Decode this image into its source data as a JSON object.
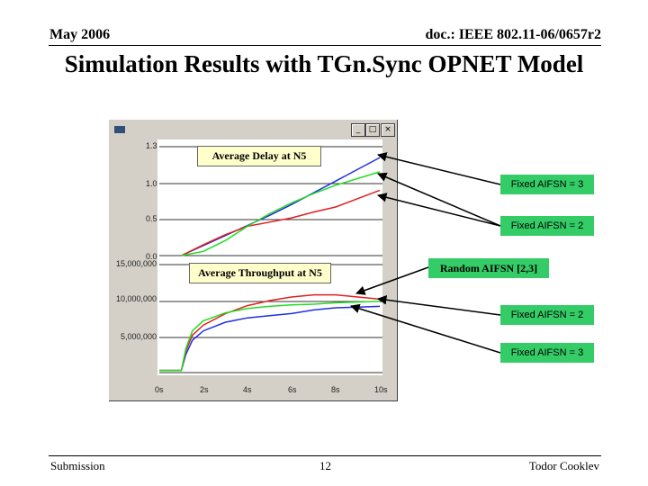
{
  "header": {
    "date": "May 2006",
    "doc": "doc.: IEEE 802.11-06/0657r2"
  },
  "title": "Simulation Results with TGn.Sync OPNET Model",
  "window": {
    "minimize": "_",
    "maximize": "□",
    "close": "×"
  },
  "chart_data": [
    {
      "type": "line",
      "title": "Average Delay at N5",
      "x_ticks": [
        "0s",
        "2s",
        "4s",
        "6s",
        "8s",
        "10s"
      ],
      "y_ticks": [
        "1.3",
        "1.0",
        "0.5",
        "0.0"
      ],
      "series": [
        {
          "name": "Fixed AIFSN = 3",
          "color": "#1f2fe0",
          "x": [
            1,
            2,
            3,
            4,
            5,
            6,
            7,
            8,
            9,
            10
          ],
          "values": [
            0.0,
            0.12,
            0.24,
            0.36,
            0.48,
            0.61,
            0.75,
            0.89,
            1.03,
            1.17
          ]
        },
        {
          "name": "Fixed AIFSN = 2",
          "color": "#e01f1f",
          "x": [
            1,
            2,
            3,
            4,
            5,
            6,
            7,
            8,
            9,
            10
          ],
          "values": [
            0.0,
            0.13,
            0.25,
            0.35,
            0.4,
            0.45,
            0.52,
            0.58,
            0.68,
            0.78
          ]
        },
        {
          "name": "Random AIFSN [2,3]",
          "color": "#22dd22",
          "x": [
            1,
            2,
            3,
            4,
            5,
            6,
            7,
            8,
            9,
            10
          ],
          "values": [
            0.0,
            0.05,
            0.18,
            0.35,
            0.5,
            0.63,
            0.74,
            0.84,
            0.92,
            1.0
          ]
        }
      ]
    },
    {
      "type": "line",
      "title": "Average Throughput at N5",
      "x_ticks": [
        "0s",
        "2s",
        "4s",
        "6s",
        "8s",
        "10s"
      ],
      "y_ticks": [
        "15,000,000",
        "10,000,000",
        "5,000,000"
      ],
      "series": [
        {
          "name": "Fixed AIFSN = 3",
          "color": "#1f2fe0",
          "x": [
            0,
            0.5,
            1,
            1.2,
            1.5,
            2,
            3,
            4,
            5,
            6,
            7,
            8,
            9,
            10
          ],
          "values": [
            0.3,
            0.3,
            0.3,
            2.5,
            4.5,
            5.8,
            7.0,
            7.6,
            7.9,
            8.2,
            8.7,
            9.0,
            9.1,
            9.2
          ]
        },
        {
          "name": "Fixed AIFSN = 2",
          "color": "#e01f1f",
          "x": [
            0,
            0.5,
            1,
            1.2,
            1.5,
            2,
            3,
            4,
            5,
            6,
            7,
            8,
            9,
            10
          ],
          "values": [
            0.3,
            0.3,
            0.3,
            3.0,
            5.2,
            6.6,
            8.2,
            9.3,
            10.0,
            10.5,
            10.8,
            10.8,
            10.5,
            10.2
          ]
        },
        {
          "name": "Random AIFSN [2,3]",
          "color": "#22dd22",
          "x": [
            0,
            0.5,
            1,
            1.2,
            1.5,
            2,
            3,
            4,
            5,
            6,
            7,
            8,
            9,
            10
          ],
          "values": [
            0.3,
            0.3,
            0.3,
            3.3,
            5.8,
            7.2,
            8.3,
            8.9,
            9.2,
            9.4,
            9.5,
            9.7,
            9.8,
            9.9
          ]
        }
      ]
    }
  ],
  "annotations": {
    "fixed3_top": "Fixed AIFSN = 3",
    "fixed2_top": "Fixed AIFSN = 2",
    "random": "Random AIFSN [2,3]",
    "fixed2_bottom": "Fixed AIFSN = 2",
    "fixed3_bottom": "Fixed AIFSN = 3"
  },
  "footer": {
    "left": "Submission",
    "page": "12",
    "author": "Todor Cooklev"
  }
}
